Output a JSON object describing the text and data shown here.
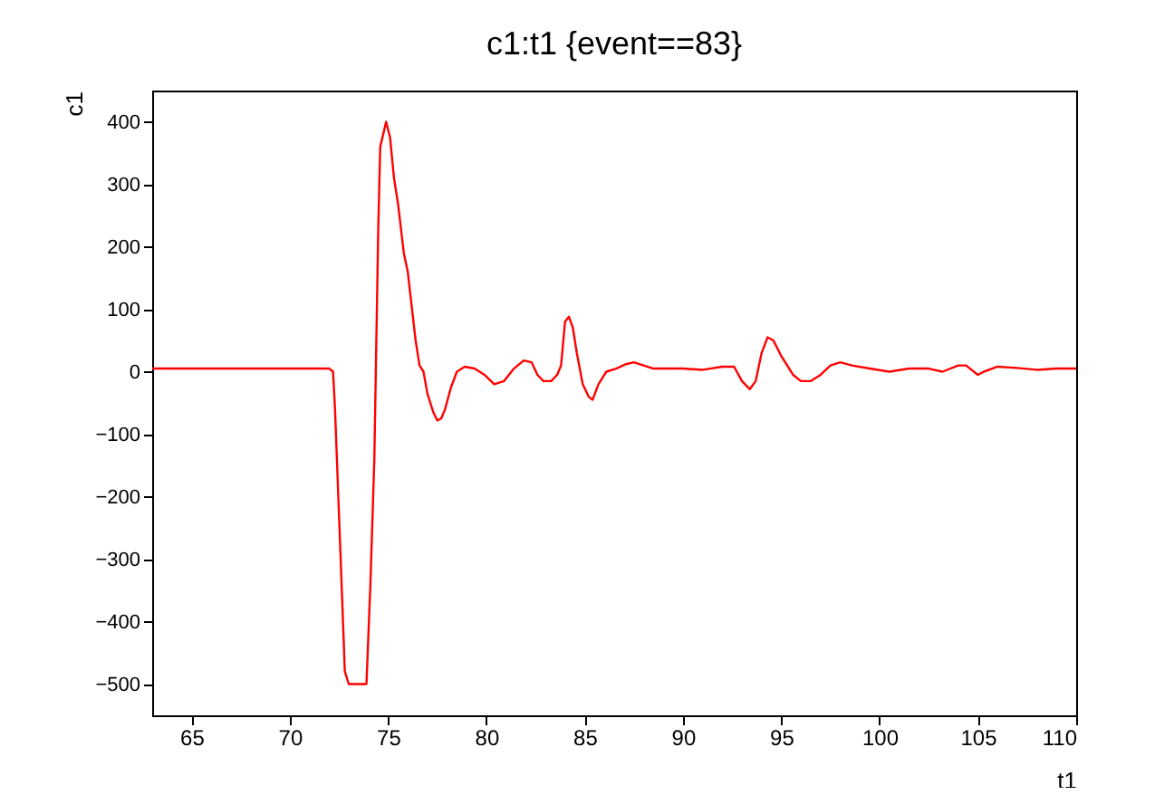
{
  "chart_data": {
    "type": "line",
    "title": "c1:t1 {event==83}",
    "xlabel": "t1",
    "ylabel": "c1",
    "x": [
      63,
      72,
      72.2,
      72.3,
      72.6,
      72.8,
      73,
      73.9,
      74.1,
      74.3,
      74.5,
      74.6,
      74.9,
      75.1,
      75.3,
      75.5,
      75.8,
      76,
      76.4,
      76.6,
      76.8,
      77,
      77.3,
      77.5,
      77.7,
      77.9,
      78.2,
      78.5,
      78.9,
      79.4,
      79.9,
      80.4,
      80.9,
      81.4,
      81.9,
      82.3,
      82.6,
      82.9,
      83.3,
      83.6,
      83.8,
      84,
      84.2,
      84.4,
      84.6,
      84.9,
      85.2,
      85.4,
      85.7,
      86.1,
      86.6,
      87.1,
      87.5,
      88,
      88.5,
      90,
      91,
      92,
      92.6,
      93,
      93.4,
      93.7,
      94,
      94.3,
      94.6,
      95,
      95.6,
      96,
      96.5,
      97,
      97.5,
      98,
      98.6,
      99.5,
      100.5,
      101.5,
      102.5,
      103.2,
      104,
      104.4,
      105,
      105.3,
      106,
      107,
      108,
      109,
      110
    ],
    "series": [
      {
        "color": "#ff0000",
        "values": [
          5,
          5,
          0,
          -60,
          -310,
          -480,
          -500,
          -500,
          -340,
          -140,
          230,
          360,
          400,
          375,
          310,
          270,
          190,
          160,
          50,
          10,
          0,
          -35,
          -65,
          -78,
          -75,
          -60,
          -25,
          0,
          8,
          5,
          -5,
          -20,
          -15,
          5,
          18,
          15,
          -5,
          -15,
          -15,
          -5,
          10,
          80,
          88,
          70,
          30,
          -20,
          -40,
          -45,
          -20,
          0,
          5,
          12,
          15,
          10,
          5,
          5,
          3,
          8,
          8,
          -15,
          -28,
          -15,
          30,
          55,
          50,
          25,
          -5,
          -15,
          -15,
          -5,
          10,
          15,
          10,
          5,
          0,
          5,
          5,
          0,
          10,
          10,
          -5,
          0,
          8,
          6,
          3,
          5,
          5
        ]
      }
    ],
    "xlim": [
      63,
      110
    ],
    "xticks": [
      65,
      70,
      75,
      80,
      85,
      90,
      95,
      100,
      105,
      110
    ],
    "ylim": [
      -550,
      450
    ],
    "yticks": [
      -500,
      -400,
      -300,
      -200,
      -100,
      0,
      100,
      200,
      300,
      400
    ],
    "grid": false,
    "marker": "none",
    "line_style": "solid"
  }
}
